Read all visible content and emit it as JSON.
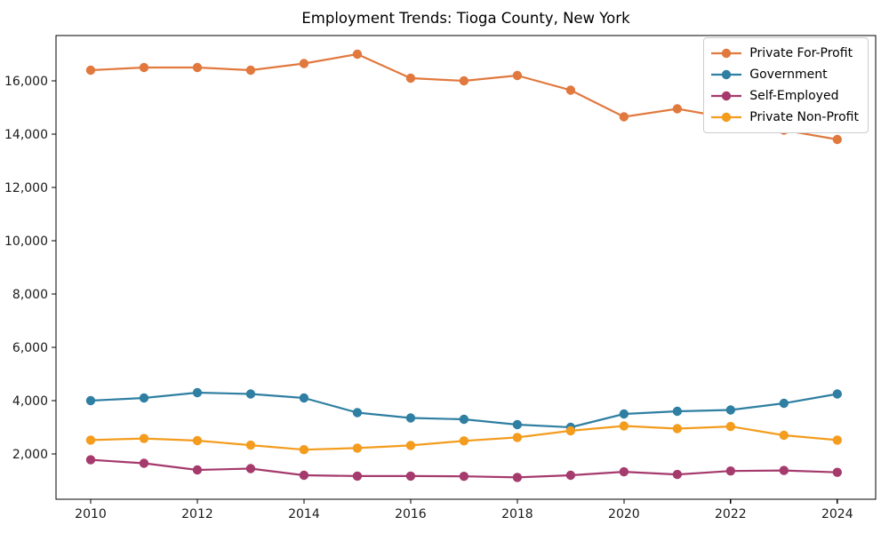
{
  "chart_data": {
    "type": "line",
    "title": "Employment Trends: Tioga County, New York",
    "xlabel": "",
    "ylabel": "",
    "grid": false,
    "legend_position": "upper right",
    "background_color": "#ffffff",
    "spine_color": "#000000",
    "tick_label_color": "#1a1a1a",
    "x": [
      2010,
      2011,
      2012,
      2013,
      2014,
      2015,
      2016,
      2017,
      2018,
      2019,
      2020,
      2021,
      2022,
      2023,
      2024
    ],
    "x_ticks": [
      2010,
      2012,
      2014,
      2016,
      2018,
      2020,
      2022,
      2024
    ],
    "x_tick_labels": [
      "2010",
      "2012",
      "2014",
      "2016",
      "2018",
      "2020",
      "2022",
      "2024"
    ],
    "y_ticks": [
      2000,
      4000,
      6000,
      8000,
      10000,
      12000,
      14000,
      16000
    ],
    "y_tick_labels": [
      "2,000",
      "4,000",
      "6,000",
      "8,000",
      "10,000",
      "12,000",
      "14,000",
      "16,000"
    ],
    "xlim": [
      2009.35,
      2024.72
    ],
    "ylim": [
      300,
      17700
    ],
    "series": [
      {
        "name": "Private For-Profit",
        "color": "#E1793E",
        "values": [
          16400,
          16500,
          16500,
          16400,
          16650,
          17000,
          16100,
          16000,
          16200,
          15650,
          14650,
          14950,
          14600,
          14150,
          13800
        ]
      },
      {
        "name": "Government",
        "color": "#2F7FA2",
        "values": [
          4000,
          4100,
          4300,
          4250,
          4100,
          3550,
          3350,
          3300,
          3100,
          3000,
          3500,
          3600,
          3650,
          3900,
          4250
        ]
      },
      {
        "name": "Self-Employed",
        "color": "#A53A6D",
        "values": [
          1780,
          1650,
          1400,
          1450,
          1200,
          1170,
          1170,
          1160,
          1120,
          1200,
          1330,
          1230,
          1360,
          1380,
          1310
        ]
      },
      {
        "name": "Private Non-Profit",
        "color": "#F39C1D",
        "values": [
          2520,
          2580,
          2500,
          2330,
          2160,
          2220,
          2320,
          2490,
          2620,
          2870,
          3050,
          2950,
          3030,
          2700,
          2520
        ]
      }
    ]
  }
}
